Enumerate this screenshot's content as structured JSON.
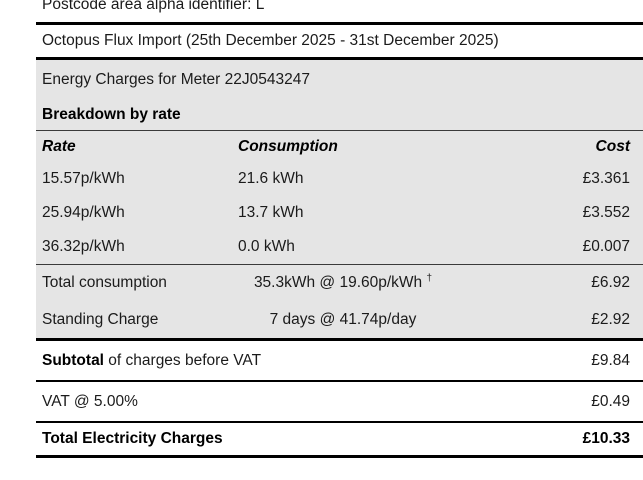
{
  "page": {
    "postcode_line": "Postcode area alpha identifier: L",
    "tariff_line": "Octopus Flux Import (25th December 2025 - 31st December 2025)",
    "meter_section_title": "Energy Charges for Meter 22J0543247",
    "breakdown_heading": "Breakdown by rate"
  },
  "table": {
    "headers": {
      "rate": "Rate",
      "consumption": "Consumption",
      "cost": "Cost"
    },
    "rate_rows": [
      {
        "rate": "15.57p/kWh",
        "consumption": "21.6 kWh",
        "cost": "£3.361"
      },
      {
        "rate": "25.94p/kWh",
        "consumption": "13.7 kWh",
        "cost": "£3.552"
      },
      {
        "rate": "36.32p/kWh",
        "consumption": "0.0 kWh",
        "cost": "£0.007"
      }
    ],
    "summary_rows": [
      {
        "label": "Total consumption",
        "detail": "35.3kWh @ 19.60p/kWh ",
        "detail_sup": "†",
        "cost": "£6.92"
      },
      {
        "label": "Standing Charge",
        "detail": "7 days @ 41.74p/day",
        "detail_sup": "",
        "cost": "£2.92"
      }
    ]
  },
  "totals": {
    "subtotal_bold": "Subtotal",
    "subtotal_rest": " of charges before VAT",
    "subtotal_value": "£9.84",
    "vat_label": "VAT @ 5.00%",
    "vat_value": "£0.49",
    "total_label": "Total Electricity Charges",
    "total_value": "£10.33"
  },
  "colors": {
    "section_bg": "#e5e5e5",
    "text": "#1b1b1b",
    "rule": "#000000"
  }
}
